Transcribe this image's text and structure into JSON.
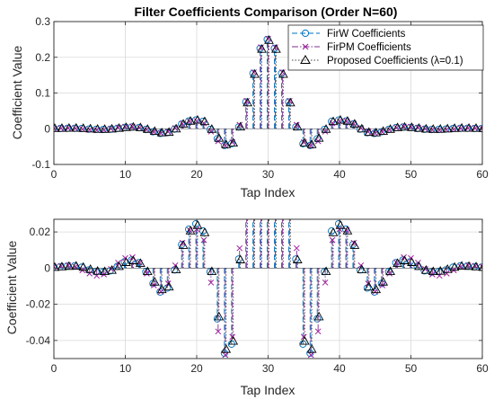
{
  "colors": {
    "firw": "#0072BD",
    "firpm": "#7E2F8E",
    "proposed": "#444444",
    "firw_marker": "#0072BD",
    "firpm_marker": "#A0219E",
    "proposed_marker": "#000000",
    "grid": "#d9d9d9",
    "axis": "#262626"
  },
  "chart_data": [
    {
      "type": "stem",
      "title": "Filter Coefficients Comparison (Order N=60)",
      "xlabel": "Tap Index",
      "ylabel": "Coefficient Value",
      "xlim": [
        0,
        60
      ],
      "ylim": [
        -0.1,
        0.3
      ],
      "xticks": [
        "0",
        "10",
        "20",
        "30",
        "40",
        "50",
        "60"
      ],
      "yticks": [
        "-0.1",
        "0",
        "0.1",
        "0.2",
        "0.3"
      ],
      "ytick_values": [
        -0.1,
        0,
        0.1,
        0.2,
        0.3
      ],
      "grid": true,
      "legend_position": "top-right",
      "x": [
        0,
        1,
        2,
        3,
        4,
        5,
        6,
        7,
        8,
        9,
        10,
        11,
        12,
        13,
        14,
        15,
        16,
        17,
        18,
        19,
        20,
        21,
        22,
        23,
        24,
        25,
        26,
        27,
        28,
        29,
        30,
        31,
        32,
        33,
        34,
        35,
        36,
        37,
        38,
        39,
        40,
        41,
        42,
        43,
        44,
        45,
        46,
        47,
        48,
        49,
        50,
        51,
        52,
        53,
        54,
        55,
        56,
        57,
        58,
        59,
        60
      ],
      "series": [
        {
          "name": "FirW Coefficients",
          "key": "firw",
          "values": [
            0.0005,
            0.0008,
            0.0011,
            0.0012,
            0.0005,
            -0.001,
            -0.002,
            -0.0022,
            -0.0015,
            0.001,
            0.0035,
            0.0045,
            0.003,
            -0.002,
            -0.0085,
            -0.0132,
            -0.011,
            -0.001,
            0.013,
            0.0215,
            0.0245,
            0.0205,
            -0.002,
            -0.028,
            -0.047,
            -0.042,
            0.005,
            0.075,
            0.155,
            0.225,
            0.25,
            0.225,
            0.155,
            0.075,
            0.005,
            -0.042,
            -0.047,
            -0.028,
            -0.002,
            0.0205,
            0.0245,
            0.0215,
            0.013,
            -0.001,
            -0.011,
            -0.0132,
            -0.0085,
            -0.002,
            0.003,
            0.0045,
            0.0035,
            0.001,
            -0.0015,
            -0.0022,
            -0.002,
            -0.001,
            0.0005,
            0.0012,
            0.0011,
            0.0008,
            0.0005
          ]
        },
        {
          "name": "FirPM Coefficients",
          "key": "firpm",
          "values": [
            0.0008,
            0.0012,
            0.0015,
            0.0008,
            -0.0012,
            -0.003,
            -0.0042,
            -0.0035,
            -0.0005,
            0.003,
            0.0055,
            0.006,
            0.003,
            -0.003,
            -0.0095,
            -0.013,
            -0.0085,
            0.0015,
            0.014,
            0.021,
            0.0215,
            0.0155,
            -0.008,
            -0.035,
            -0.048,
            -0.038,
            0.011,
            0.078,
            0.158,
            0.228,
            0.252,
            0.228,
            0.158,
            0.078,
            0.011,
            -0.038,
            -0.048,
            -0.035,
            -0.008,
            0.0155,
            0.0215,
            0.021,
            0.014,
            0.0015,
            -0.0085,
            -0.013,
            -0.0095,
            -0.003,
            0.003,
            0.006,
            0.0055,
            0.003,
            -0.0005,
            -0.0035,
            -0.0042,
            -0.003,
            -0.0012,
            0.0008,
            0.0015,
            0.0012,
            0.0008
          ]
        },
        {
          "name": "Proposed Coefficients (λ=0.1)",
          "key": "proposed",
          "values": [
            0.0003,
            0.0006,
            0.0009,
            0.001,
            0.0004,
            -0.0008,
            -0.0018,
            -0.002,
            -0.0013,
            0.0008,
            0.003,
            0.004,
            0.0025,
            -0.002,
            -0.0078,
            -0.012,
            -0.0105,
            -0.001,
            0.0125,
            0.0205,
            0.0235,
            0.0195,
            -0.002,
            -0.027,
            -0.045,
            -0.0405,
            0.0045,
            0.072,
            0.152,
            0.222,
            0.247,
            0.222,
            0.152,
            0.072,
            0.0045,
            -0.0405,
            -0.045,
            -0.027,
            -0.002,
            0.0195,
            0.0235,
            0.0205,
            0.0125,
            -0.001,
            -0.0105,
            -0.012,
            -0.0078,
            -0.002,
            0.0025,
            0.004,
            0.003,
            0.0008,
            -0.0013,
            -0.002,
            -0.0018,
            -0.0008,
            0.0004,
            0.001,
            0.0009,
            0.0006,
            0.0003
          ]
        }
      ]
    },
    {
      "type": "stem",
      "title": "",
      "xlabel": "Tap Index",
      "ylabel": "Coefficient Value",
      "xlim": [
        0,
        60
      ],
      "ylim": [
        -0.05,
        0.027
      ],
      "xticks": [
        "0",
        "10",
        "20",
        "30",
        "40",
        "50",
        "60"
      ],
      "yticks": [
        "-0.04",
        "-0.02",
        "0",
        "0.02"
      ],
      "ytick_values": [
        -0.04,
        -0.02,
        0,
        0.02
      ],
      "grid": true,
      "note": "same three series as the top panel, zoomed vertically (large central taps are clipped)"
    }
  ]
}
